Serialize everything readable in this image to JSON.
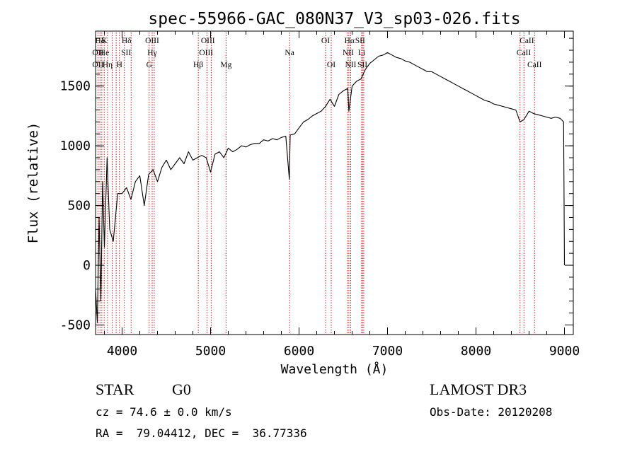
{
  "chart_data": {
    "type": "line",
    "title": "spec-55966-GAC_080N37_V3_sp03-026.fits",
    "xlabel": "Wavelength (Å)",
    "ylabel": "Flux (relative)",
    "xlim": [
      3700,
      9100
    ],
    "ylim": [
      -580,
      1960
    ],
    "x_ticks": [
      4000,
      5000,
      6000,
      7000,
      8000,
      9000
    ],
    "y_ticks": [
      -500,
      0,
      500,
      1000,
      1500
    ],
    "grid": false,
    "series": [
      {
        "name": "flux",
        "x": [
          3700,
          3720,
          3740,
          3760,
          3780,
          3800,
          3830,
          3860,
          3900,
          3950,
          4000,
          4050,
          4100,
          4150,
          4200,
          4250,
          4300,
          4350,
          4400,
          4450,
          4500,
          4550,
          4600,
          4650,
          4700,
          4750,
          4800,
          4850,
          4900,
          4950,
          5000,
          5050,
          5100,
          5150,
          5200,
          5250,
          5300,
          5350,
          5400,
          5450,
          5500,
          5550,
          5600,
          5650,
          5700,
          5750,
          5800,
          5850,
          5890,
          5900,
          5950,
          6000,
          6050,
          6100,
          6150,
          6200,
          6250,
          6300,
          6350,
          6400,
          6450,
          6500,
          6550,
          6563,
          6600,
          6650,
          6700,
          6750,
          6800,
          6850,
          6900,
          6950,
          7000,
          7050,
          7100,
          7150,
          7200,
          7250,
          7300,
          7350,
          7400,
          7450,
          7500,
          7550,
          7600,
          7650,
          7700,
          7750,
          7800,
          7850,
          7900,
          7950,
          8000,
          8050,
          8100,
          8150,
          8200,
          8250,
          8300,
          8350,
          8400,
          8450,
          8498,
          8542,
          8600,
          8650,
          8700,
          8750,
          8800,
          8850,
          8900,
          8950,
          8990,
          9000
        ],
        "y": [
          -200,
          -480,
          400,
          -300,
          700,
          150,
          900,
          300,
          200,
          600,
          600,
          650,
          550,
          700,
          750,
          500,
          760,
          800,
          700,
          820,
          880,
          800,
          850,
          900,
          850,
          950,
          880,
          900,
          920,
          900,
          780,
          930,
          950,
          900,
          980,
          950,
          970,
          1000,
          990,
          1010,
          1020,
          1020,
          1050,
          1040,
          1060,
          1050,
          1070,
          1080,
          720,
          1090,
          1100,
          1150,
          1200,
          1220,
          1250,
          1270,
          1290,
          1330,
          1390,
          1330,
          1430,
          1460,
          1480,
          1290,
          1500,
          1540,
          1560,
          1640,
          1690,
          1720,
          1750,
          1760,
          1780,
          1760,
          1740,
          1730,
          1710,
          1700,
          1680,
          1660,
          1640,
          1620,
          1620,
          1600,
          1580,
          1560,
          1540,
          1520,
          1500,
          1480,
          1460,
          1440,
          1420,
          1400,
          1380,
          1370,
          1350,
          1340,
          1330,
          1320,
          1310,
          1300,
          1200,
          1220,
          1290,
          1270,
          1260,
          1250,
          1240,
          1230,
          1240,
          1230,
          1200,
          0
        ]
      }
    ],
    "lines_top": [
      {
        "label": "Hδ",
        "x": 3750
      },
      {
        "label": "K",
        "x": 3800
      },
      {
        "label": "Hδ",
        "x": 4050
      },
      {
        "label": "OIII",
        "x": 4340
      },
      {
        "label": "OIII",
        "x": 4970
      },
      {
        "label": "OI",
        "x": 6300
      },
      {
        "label": "Hα",
        "x": 6570
      },
      {
        "label": "SII",
        "x": 6690
      },
      {
        "label": "CaII",
        "x": 8575
      }
    ],
    "lines_mid": [
      {
        "label": "OII",
        "x": 3727
      },
      {
        "label": "He",
        "x": 3800
      },
      {
        "label": "SII",
        "x": 4045
      },
      {
        "label": "Hγ",
        "x": 4340
      },
      {
        "label": "OIII",
        "x": 4950
      },
      {
        "label": "Na",
        "x": 5893
      },
      {
        "label": "NII",
        "x": 6555
      },
      {
        "label": "Li",
        "x": 6708
      },
      {
        "label": "CaII",
        "x": 8540
      }
    ],
    "lines_bot": [
      {
        "label": "OII",
        "x": 3727
      },
      {
        "label": "Hη",
        "x": 3835
      },
      {
        "label": "H",
        "x": 3970
      },
      {
        "label": "G",
        "x": 4306
      },
      {
        "label": "Hβ",
        "x": 4861
      },
      {
        "label": "Mg",
        "x": 5175
      },
      {
        "label": "OI",
        "x": 6364
      },
      {
        "label": "NII",
        "x": 6584
      },
      {
        "label": "SII",
        "x": 6716
      },
      {
        "label": "CaII",
        "x": 8662
      }
    ],
    "vlines": [
      3727,
      3750,
      3771,
      3798,
      3835,
      3889,
      3933,
      3970,
      4026,
      4102,
      4306,
      4340,
      4363,
      4861,
      4959,
      5007,
      5175,
      5893,
      6300,
      6364,
      6548,
      6563,
      6584,
      6708,
      6716,
      6731,
      8498,
      8542,
      8662
    ]
  },
  "info": {
    "object_class": "STAR",
    "subclass": "G0",
    "survey": "LAMOST DR3",
    "cz_text": "cz = 74.6 ± 0.0 km/s",
    "obs_date_text": "Obs-Date: 20120208",
    "radec_text": "RA =  79.04412, DEC =  36.77336"
  }
}
